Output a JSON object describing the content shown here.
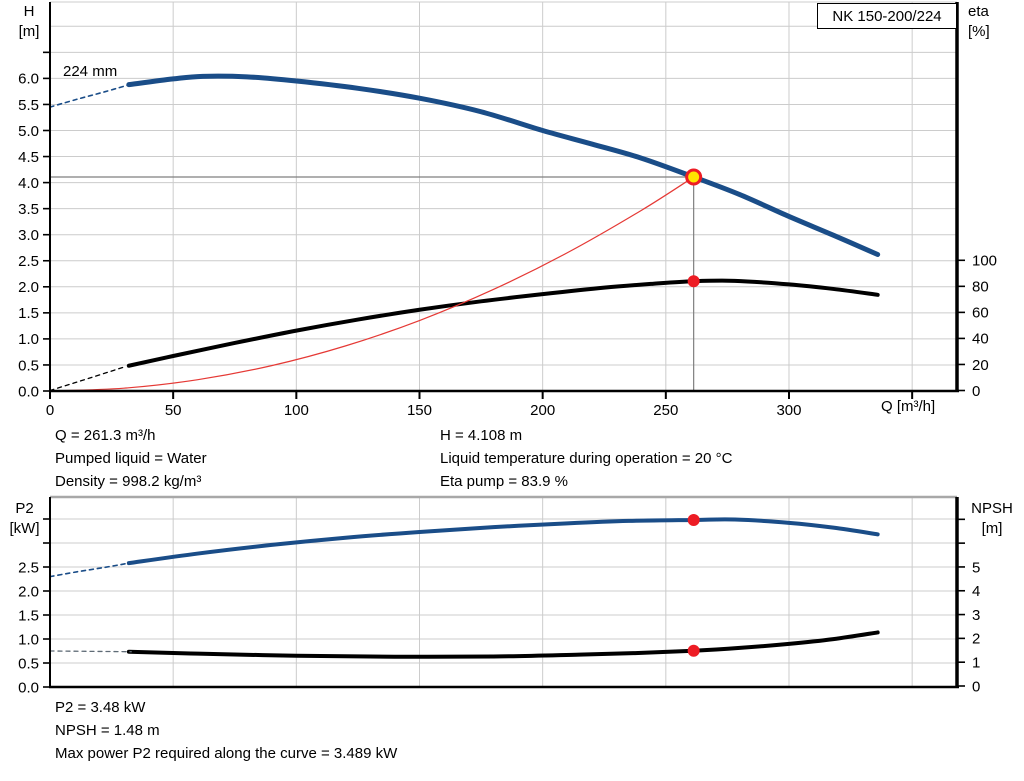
{
  "header": {
    "model": "NK 150-200/224"
  },
  "titles": {
    "h_axis": [
      "H",
      "[m]"
    ],
    "eta_axis": [
      "eta",
      "[%]"
    ],
    "q_axis": "Q [m³/h]",
    "p2_axis": [
      "P2",
      "[kW]"
    ],
    "npsh_axis": [
      "NPSH",
      "[m]"
    ],
    "impeller_label": "224 mm"
  },
  "info_mid": {
    "q": "Q = 261.3 m³/h",
    "liquid": "Pumped liquid = Water",
    "density": "Density = 998.2 kg/m³",
    "h": "H = 4.108 m",
    "temperature": "Liquid temperature during operation = 20 °C",
    "eta": "Eta pump = 83.9 %"
  },
  "info_bottom": {
    "p2": "P2 = 3.48 kW",
    "npsh": "NPSH = 1.48 m",
    "max_power": "Max power P2 required along the curve = 3.489 kW"
  },
  "colors": {
    "curve_blue": "#1a4d88",
    "curve_black": "#000000",
    "system_red": "#e53935",
    "dot_red": "#ed1c24",
    "duty_yellow": "#ffe600",
    "grid": "#cccccc",
    "crosshair": "#7f7f7f",
    "axis": "#000000",
    "bottom_chart_top_border": "#a8a8a8",
    "npsh_dash_gray": "#5f6b76"
  },
  "duty_point": {
    "q_m3h": 261.3,
    "h_m": 4.108,
    "eta_pct": 83.9,
    "p2_kw": 3.48,
    "npsh_m": 1.48,
    "max_p2_kw": 3.489
  },
  "chart_data": [
    {
      "id": "qh",
      "type": "line",
      "title": "NK 150-200/224",
      "x_axis": {
        "label": "Q [m³/h]",
        "min": 0,
        "max": 368,
        "ticks": [
          [
            0,
            "0"
          ],
          [
            50,
            "50"
          ],
          [
            100,
            "100"
          ],
          [
            150,
            "150"
          ],
          [
            200,
            "200"
          ],
          [
            250,
            "250"
          ],
          [
            300,
            "300"
          ],
          [
            350,
            ""
          ]
        ]
      },
      "y_left": {
        "label": "H [m]",
        "min": 0,
        "max": 7.47,
        "ticks": [
          [
            0,
            "0.0"
          ],
          [
            0.5,
            "0.5"
          ],
          [
            1,
            "1.0"
          ],
          [
            1.5,
            "1.5"
          ],
          [
            2,
            "2.0"
          ],
          [
            2.5,
            "2.5"
          ],
          [
            3,
            "3.0"
          ],
          [
            3.5,
            "3.5"
          ],
          [
            4,
            "4.0"
          ],
          [
            4.5,
            "4.5"
          ],
          [
            5,
            "5.0"
          ],
          [
            5.5,
            "5.5"
          ],
          [
            6,
            "6.0"
          ],
          [
            6.5,
            ""
          ]
        ],
        "grid_values": [
          0.5,
          1,
          1.5,
          2,
          2.5,
          3,
          3.5,
          4,
          4.5,
          5,
          5.5,
          6,
          6.5,
          7
        ]
      },
      "y_right": {
        "label": "eta [%]",
        "min": 0,
        "max": 100,
        "ticks": [
          [
            0,
            "0"
          ],
          [
            20,
            "20"
          ],
          [
            40,
            "40"
          ],
          [
            60,
            "60"
          ],
          [
            80,
            "80"
          ],
          [
            100,
            "100"
          ]
        ]
      },
      "series": [
        {
          "name": "head-curve-224mm",
          "axis": "left",
          "color": "#1a4d88",
          "width": 5,
          "points": [
            [
              32,
              5.88
            ],
            [
              50,
              5.99
            ],
            [
              62,
              6.04
            ],
            [
              80,
              6.03
            ],
            [
              100,
              5.95
            ],
            [
              125,
              5.81
            ],
            [
              150,
              5.62
            ],
            [
              175,
              5.36
            ],
            [
              200,
              5.0
            ],
            [
              220,
              4.74
            ],
            [
              240,
              4.47
            ],
            [
              261.3,
              4.108
            ],
            [
              280,
              3.77
            ],
            [
              300,
              3.35
            ],
            [
              318,
              2.99
            ],
            [
              336,
              2.62
            ]
          ]
        },
        {
          "name": "head-curve-dashed-lead",
          "axis": "left",
          "color": "#1a4d88",
          "width": 1.6,
          "dash": "4 4",
          "points": [
            [
              0,
              5.45
            ],
            [
              11,
              5.6
            ],
            [
              22,
              5.74
            ],
            [
              33,
              5.89
            ]
          ]
        },
        {
          "name": "efficiency-curve",
          "axis": "right",
          "color": "#000000",
          "width": 4,
          "points": [
            [
              32,
              19
            ],
            [
              50,
              26.5
            ],
            [
              75,
              36.5
            ],
            [
              100,
              46
            ],
            [
              125,
              54.5
            ],
            [
              150,
              62
            ],
            [
              175,
              68.5
            ],
            [
              200,
              74
            ],
            [
              225,
              79
            ],
            [
              245,
              82
            ],
            [
              261.3,
              83.9
            ],
            [
              278,
              84.2
            ],
            [
              300,
              81.5
            ],
            [
              318,
              78
            ],
            [
              336,
              73.5
            ]
          ]
        },
        {
          "name": "efficiency-curve-dashed-lead",
          "axis": "right",
          "color": "#000000",
          "width": 1.3,
          "dash": "4 4",
          "points": [
            [
              0,
              0
            ],
            [
              16,
              9.5
            ],
            [
              30,
              18
            ]
          ]
        },
        {
          "name": "system-curve",
          "axis": "left",
          "color": "#e53935",
          "width": 1.2,
          "points": [
            [
              0,
              0
            ],
            [
              30,
              0.054
            ],
            [
              60,
              0.217
            ],
            [
              90,
              0.487
            ],
            [
              120,
              0.866
            ],
            [
              150,
              1.353
            ],
            [
              180,
              1.949
            ],
            [
              210,
              2.653
            ],
            [
              240,
              3.465
            ],
            [
              261.3,
              4.108
            ]
          ]
        }
      ],
      "crosshair": {
        "q": 261.3,
        "value": 4.108,
        "axis": "left"
      },
      "markers": [
        {
          "name": "duty-point-marker",
          "q": 261.3,
          "value": 4.108,
          "axis": "left",
          "fill": "#ffe600",
          "stroke": "#ed1c24",
          "stroke_width": 3,
          "r": 7
        },
        {
          "name": "efficiency-point-marker",
          "q": 261.3,
          "value": 83.9,
          "axis": "right",
          "fill": "#ed1c24",
          "r": 6
        }
      ]
    },
    {
      "id": "p2npsh",
      "type": "line",
      "title": "",
      "x_axis": {
        "label": "",
        "min": 0,
        "max": 368,
        "ticks": [
          [
            50,
            ""
          ],
          [
            100,
            ""
          ],
          [
            150,
            ""
          ],
          [
            200,
            ""
          ],
          [
            250,
            ""
          ],
          [
            300,
            ""
          ],
          [
            350,
            ""
          ]
        ]
      },
      "y_left": {
        "label": "P2 [kW]",
        "min": 0,
        "max": 3.96,
        "ticks": [
          [
            0,
            "0.0"
          ],
          [
            0.5,
            "0.5"
          ],
          [
            1,
            "1.0"
          ],
          [
            1.5,
            "1.5"
          ],
          [
            2,
            "2.0"
          ],
          [
            2.5,
            "2.5"
          ],
          [
            3,
            ""
          ],
          [
            3.5,
            ""
          ]
        ],
        "grid_values": [
          0.5,
          1,
          1.5,
          2,
          2.5,
          3,
          3.5
        ]
      },
      "y_right": {
        "label": "NPSH [m]",
        "min": 0,
        "max": 7.9,
        "ticks": [
          [
            0,
            "0"
          ],
          [
            1,
            "1"
          ],
          [
            2,
            "2"
          ],
          [
            3,
            "3"
          ],
          [
            4,
            "4"
          ],
          [
            5,
            "5"
          ],
          [
            6,
            ""
          ],
          [
            7,
            ""
          ]
        ]
      },
      "series": [
        {
          "name": "p2-curve",
          "axis": "left",
          "color": "#1a4d88",
          "width": 4,
          "points": [
            [
              32,
              2.58
            ],
            [
              60,
              2.78
            ],
            [
              90,
              2.96
            ],
            [
              120,
              3.11
            ],
            [
              150,
              3.23
            ],
            [
              180,
              3.33
            ],
            [
              210,
              3.41
            ],
            [
              235,
              3.46
            ],
            [
              261.3,
              3.48
            ],
            [
              278,
              3.489
            ],
            [
              300,
              3.42
            ],
            [
              318,
              3.32
            ],
            [
              336,
              3.18
            ]
          ]
        },
        {
          "name": "p2-curve-dashed-lead",
          "axis": "left",
          "color": "#1a4d88",
          "width": 1.6,
          "dash": "4 4",
          "points": [
            [
              0,
              2.3
            ],
            [
              11,
              2.4
            ],
            [
              22,
              2.49
            ],
            [
              33,
              2.59
            ]
          ]
        },
        {
          "name": "npsh-curve",
          "axis": "right",
          "color": "#000000",
          "width": 4,
          "points": [
            [
              32,
              1.44
            ],
            [
              60,
              1.36
            ],
            [
              100,
              1.27
            ],
            [
              140,
              1.23
            ],
            [
              180,
              1.24
            ],
            [
              215,
              1.32
            ],
            [
              240,
              1.39
            ],
            [
              261.3,
              1.48
            ],
            [
              280,
              1.6
            ],
            [
              300,
              1.77
            ],
            [
              318,
              1.97
            ],
            [
              336,
              2.25
            ]
          ]
        },
        {
          "name": "npsh-curve-dashed-lead",
          "axis": "right",
          "color": "#5f6b76",
          "width": 1.3,
          "dash": "4 4",
          "points": [
            [
              0,
              1.47
            ],
            [
              33,
              1.44
            ]
          ]
        }
      ],
      "markers": [
        {
          "name": "p2-point-marker",
          "q": 261.3,
          "value": 3.48,
          "axis": "left",
          "fill": "#ed1c24",
          "r": 6
        },
        {
          "name": "npsh-point-marker",
          "q": 261.3,
          "value": 1.48,
          "axis": "right",
          "fill": "#ed1c24",
          "r": 6
        }
      ]
    }
  ]
}
